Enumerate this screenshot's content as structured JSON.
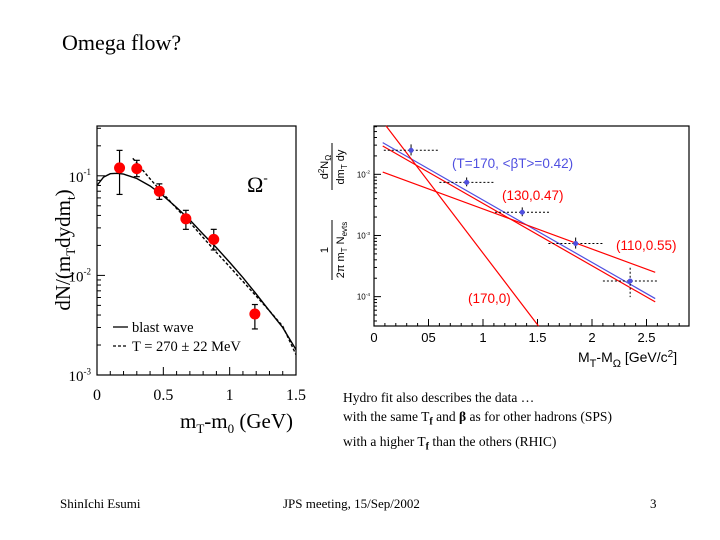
{
  "slide": {
    "title": "Omega flow?",
    "footer": {
      "author": "ShinIchi Esumi",
      "event": "JPS meeting, 15/Sep/2002",
      "page": "3"
    },
    "notes": {
      "line1": "Hydro fit also describes the data …",
      "line2_a": "with the same T",
      "line2_sub": "f",
      "line2_b": " and ",
      "line2_beta": "β",
      "line2_c": " as for other hadrons (SPS)",
      "line3_a": "with a higher T",
      "line3_sub": "f",
      "line3_b": " than the others (RHIC)"
    }
  },
  "chart_data": [
    {
      "type": "scatter",
      "title": "",
      "particle_label": "Ω",
      "particle_sup": "-",
      "xlabel": "mT-m0 (GeV)",
      "ylabel": "dN/(mTdydmt)",
      "xlim": [
        0,
        1.5
      ],
      "ylim_log10": [
        -3,
        -0.5
      ],
      "yscale": "log",
      "x_ticks": [
        {
          "v": 0,
          "label": "0"
        },
        {
          "v": 0.5,
          "label": "0.5"
        },
        {
          "v": 1,
          "label": "1"
        },
        {
          "v": 1.5,
          "label": "1.5"
        }
      ],
      "y_ticks": [
        {
          "v": -1,
          "base": "10",
          "exp": "-1"
        },
        {
          "v": -2,
          "base": "10",
          "exp": "-2"
        },
        {
          "v": -3,
          "base": "10",
          "exp": "-3"
        }
      ],
      "points": {
        "color": "#ff0000",
        "x": [
          0.17,
          0.3,
          0.47,
          0.67,
          0.88,
          1.19
        ],
        "y": [
          0.12,
          0.118,
          0.07,
          0.037,
          0.023,
          0.0041
        ],
        "y_err_low": [
          0.055,
          0.02,
          0.012,
          0.008,
          0.005,
          0.0012
        ],
        "y_err_high": [
          0.06,
          0.025,
          0.013,
          0.008,
          0.006,
          0.001
        ]
      },
      "legend": {
        "placement": "bottom-left",
        "entries": [
          {
            "style": "solid",
            "label": "blast wave"
          },
          {
            "style": "dashed",
            "label": "T = 270 ± 22 MeV"
          }
        ]
      },
      "curves": [
        {
          "name": "blast wave",
          "style": "solid",
          "x": [
            0.0,
            0.05,
            0.1,
            0.15,
            0.2,
            0.3,
            0.4,
            0.5,
            0.6,
            0.7,
            0.8,
            0.9,
            1.0,
            1.1,
            1.2,
            1.3,
            1.4,
            1.5
          ],
          "y": [
            0.08,
            0.097,
            0.105,
            0.106,
            0.104,
            0.094,
            0.079,
            0.063,
            0.048,
            0.036,
            0.026,
            0.019,
            0.0135,
            0.0095,
            0.0065,
            0.0044,
            0.003,
            0.0018
          ]
        },
        {
          "name": "T = 270 ± 22 MeV",
          "style": "dashed",
          "x": [
            0.27,
            0.4,
            0.5,
            0.6,
            0.7,
            0.8,
            0.9,
            1.0,
            1.1,
            1.2,
            1.3,
            1.4,
            1.5
          ],
          "y": [
            0.15,
            0.093,
            0.066,
            0.047,
            0.034,
            0.024,
            0.017,
            0.0122,
            0.0087,
            0.0062,
            0.0044,
            0.0031,
            0.0016
          ]
        }
      ]
    },
    {
      "type": "scatter",
      "title": "",
      "xlabel": "MT-MΩ [GeV/c2]",
      "xlabel_parts": {
        "a": "M",
        "sub1": "T",
        "b": "-M",
        "sub2": "Ω",
        "c": " [GeV/c",
        "sup": "2",
        "d": "]"
      },
      "ylabel_top": "d²NΩ / dmT dy",
      "ylabel_bottom": "1 / 2π mT Nevts",
      "xlim": [
        0,
        2.9
      ],
      "ylim_log10": [
        -4.48,
        -1.21
      ],
      "yscale": "log",
      "x_ticks": [
        {
          "v": 0,
          "label": "0"
        },
        {
          "v": 0.5,
          "label": "05"
        },
        {
          "v": 1,
          "label": "1"
        },
        {
          "v": 1.5,
          "label": "1.5"
        },
        {
          "v": 2,
          "label": "2"
        },
        {
          "v": 2.5,
          "label": "2.5"
        }
      ],
      "y_ticks": [
        {
          "v": -2,
          "base": "10",
          "exp": "-2"
        },
        {
          "v": -3,
          "base": "10",
          "exp": "-3"
        },
        {
          "v": -4,
          "base": "10",
          "exp": "-4"
        }
      ],
      "points": {
        "color": "#5050e0",
        "x": [
          0.34,
          0.85,
          1.36,
          1.85,
          2.35
        ],
        "y": [
          0.0247,
          0.0074,
          0.0024,
          0.00074,
          0.00018
        ],
        "x_halfwidth": 0.25,
        "y_err_rel": [
          0.25,
          0.2,
          0.2,
          0.25,
          0.65
        ]
      },
      "fits": [
        {
          "label": "(T=170, <βT>=0.42)",
          "color": "#5050e0",
          "x": [
            0.08,
            2.58
          ],
          "y": [
            0.033,
            9.3e-05
          ]
        },
        {
          "label": "(130,0.47)",
          "color": "#ff0000",
          "x": [
            0.08,
            2.58
          ],
          "y": [
            0.029,
            8.2e-05
          ]
        },
        {
          "label": "(110,0.55)",
          "color": "#ff0000",
          "x": [
            0.08,
            2.58
          ],
          "y": [
            0.0109,
            0.00025
          ]
        },
        {
          "label": "(170,0)",
          "color": "#ff0000",
          "x": [
            0.11,
            1.51
          ],
          "y": [
            0.062,
            3.3e-05
          ]
        }
      ]
    }
  ]
}
